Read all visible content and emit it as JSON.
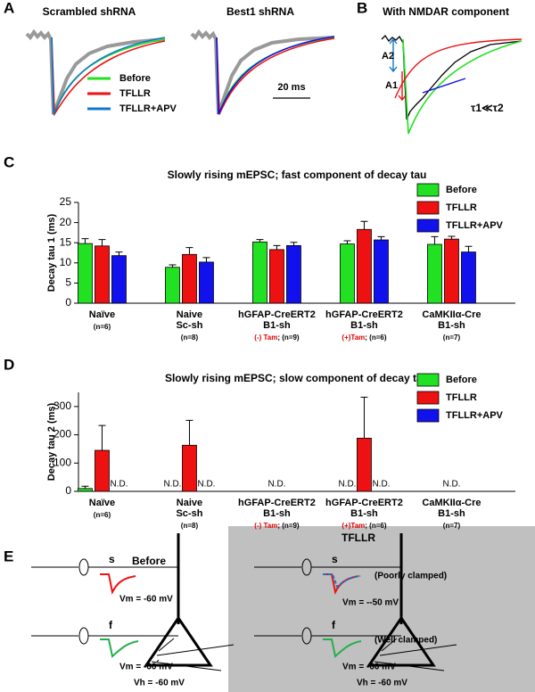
{
  "panels": {
    "A": {
      "label": "A",
      "titles": [
        "Scrambled shRNA",
        "Best1 shRNA"
      ],
      "legend": [
        "Before",
        "TFLLR",
        "TFLLR+APV"
      ],
      "scale_bar": "20 ms"
    },
    "B": {
      "label": "B",
      "title": "With NMDAR component",
      "a2": "A2",
      "a1": "A1",
      "relation": "τ1≪τ2"
    },
    "E": {
      "label": "E",
      "before": {
        "title": "Before",
        "s": "s",
        "s_vm": "Vm = -60 mV",
        "f": "f",
        "f_vm": "Vm = -60 mV",
        "vh": "Vh = -60 mV"
      },
      "tfllr": {
        "title": "TFLLR",
        "s": "s",
        "s_note": "(Poorly clamped)",
        "s_vm": "Vm = --50 mV",
        "f": "f",
        "f_note": "(Well clamped)",
        "f_vm": "Vm = -60 mV",
        "vh": "Vh = -60 mV"
      }
    }
  },
  "chart_data": [
    {
      "type": "bar",
      "panel": "C",
      "title": "Slowly rising mEPSC; fast component of decay tau",
      "y_label": "Decay tau 1 (ms)",
      "categories": [
        [
          "Naïve"
        ],
        [
          "Naive",
          "Sc-sh"
        ],
        [
          "hGFAP-CreERT2",
          "B1-sh"
        ],
        [
          "hGFAP-CreERT2",
          "B1-sh"
        ],
        [
          "CaMKIIα-Cre",
          "B1-sh"
        ]
      ],
      "category_notes": [
        [
          {
            "text": "(n=6)"
          }
        ],
        [
          {
            "text": "(n=8)"
          }
        ],
        [
          {
            "text": "(-) Tam",
            "color": "#e00000"
          },
          {
            "text": "; (n=9)"
          }
        ],
        [
          {
            "text": "(+)Tam",
            "color": "#e00000"
          },
          {
            "text": "; (n=6)"
          }
        ],
        [
          {
            "text": "(n=7)"
          }
        ]
      ],
      "series": [
        {
          "name": "Before",
          "color": "#22e022",
          "values": [
            14.8,
            8.9,
            15.2,
            14.7,
            14.6
          ],
          "errors": [
            1.2,
            0.6,
            0.6,
            0.8,
            1.9
          ]
        },
        {
          "name": "TFLLR",
          "color": "#ee1111",
          "values": [
            14.2,
            12.1,
            13.3,
            18.3,
            15.9
          ],
          "errors": [
            1.6,
            1.7,
            1.0,
            2.0,
            0.7
          ]
        },
        {
          "name": "TFLLR+APV",
          "color": "#1111ee",
          "values": [
            11.8,
            10.2,
            14.3,
            15.7,
            12.7
          ],
          "errors": [
            0.9,
            1.1,
            0.8,
            0.8,
            1.4
          ]
        }
      ],
      "ylim": [
        0,
        25
      ],
      "yticks": [
        0,
        5,
        10,
        15,
        20,
        25
      ],
      "legend": "upper right"
    },
    {
      "type": "bar",
      "panel": "D",
      "title": "Slowly rising mEPSC; slow component of decay tau",
      "y_label": "Decay tau 2 (ms)",
      "categories": [
        [
          "Naïve"
        ],
        [
          "Naive",
          "Sc-sh"
        ],
        [
          "hGFAP-CreERT2",
          "B1-sh"
        ],
        [
          "hGFAP-CreERT2",
          "B1-sh"
        ],
        [
          "CaMKIIα-Cre",
          "B1-sh"
        ]
      ],
      "category_notes": [
        [
          {
            "text": "(n=6)"
          }
        ],
        [
          {
            "text": "(n=8)"
          }
        ],
        [
          {
            "text": "(-) Tam",
            "color": "#e00000"
          },
          {
            "text": "; (n=9)"
          }
        ],
        [
          {
            "text": "(+)Tam",
            "color": "#e00000"
          },
          {
            "text": "; (n=6)"
          }
        ],
        [
          {
            "text": "(n=7)"
          }
        ]
      ],
      "series": [
        {
          "name": "Before",
          "color": "#22e022",
          "values": [
            10,
            null,
            null,
            null,
            null
          ],
          "errors": [
            8,
            null,
            null,
            null,
            null
          ],
          "value_labels": [
            null,
            "N.D.",
            null,
            "N.D.",
            null
          ]
        },
        {
          "name": "TFLLR",
          "color": "#ee1111",
          "values": [
            145,
            163,
            null,
            188,
            null
          ],
          "errors": [
            88,
            88,
            null,
            145,
            null
          ],
          "value_labels": [
            null,
            null,
            "N.D.",
            null,
            "N.D."
          ]
        },
        {
          "name": "TFLLR+APV",
          "color": "#1111ee",
          "values": [
            null,
            null,
            null,
            null,
            null
          ],
          "errors": [
            null,
            null,
            null,
            null,
            null
          ],
          "value_labels": [
            "N.D.",
            "N.D.",
            null,
            "N.D.",
            null
          ]
        }
      ],
      "ylim": [
        0,
        350
      ],
      "yticks": [
        0,
        100,
        200,
        300
      ],
      "legend": "upper right"
    }
  ]
}
